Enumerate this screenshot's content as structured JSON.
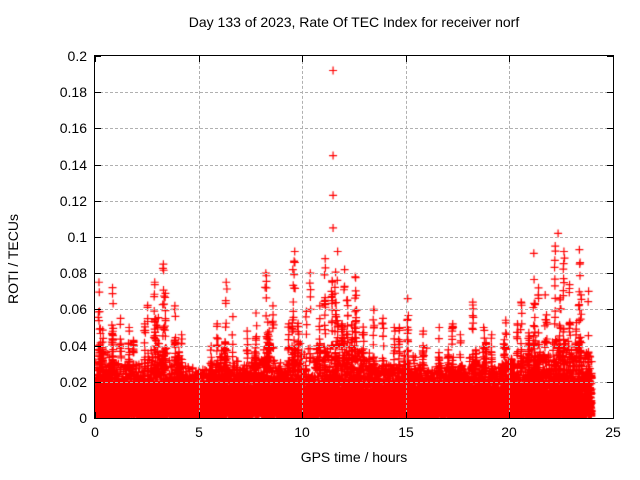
{
  "chart_data": {
    "type": "scatter",
    "title": "Day 133 of 2023, Rate Of TEC Index for receiver norf",
    "xlabel": "GPS time / hours",
    "ylabel": "ROTI / TECUs",
    "xlim": [
      0,
      25
    ],
    "ylim": [
      0,
      0.2
    ],
    "grid": true,
    "legend": "none",
    "marker": "plus",
    "marker_color": "#ff0000",
    "marker_size_px": 8,
    "grid_color": "#b0b0b0",
    "axis_color": "#000000",
    "background_color": "#ffffff",
    "xticks": [
      {
        "v": 0,
        "label": "0"
      },
      {
        "v": 5,
        "label": "5"
      },
      {
        "v": 10,
        "label": "10"
      },
      {
        "v": 15,
        "label": "15"
      },
      {
        "v": 20,
        "label": "20"
      },
      {
        "v": 25,
        "label": "25"
      }
    ],
    "yticks": [
      {
        "v": 0,
        "label": "0"
      },
      {
        "v": 0.02,
        "label": "0.02"
      },
      {
        "v": 0.04,
        "label": "0.04"
      },
      {
        "v": 0.06,
        "label": "0.06"
      },
      {
        "v": 0.08,
        "label": "0.08"
      },
      {
        "v": 0.1,
        "label": "0.1"
      },
      {
        "v": 0.12,
        "label": "0.12"
      },
      {
        "v": 0.14,
        "label": "0.14"
      },
      {
        "v": 0.16,
        "label": "0.16"
      },
      {
        "v": 0.18,
        "label": "0.18"
      },
      {
        "v": 0.2,
        "label": "0.2"
      }
    ],
    "series_model": {
      "note": "Dense red '+' scatter of ~17000 ROTI samples over 0-24 h; solid noise floor below ~0.026 TECU, semi-dense band to ~0.04, and clustered spike columns whose per-half-hour maxima are listed in envelope_max.",
      "x_data_range": [
        0.02,
        23.98
      ],
      "seed": 20231337,
      "n_base_points": 16000,
      "floor_min": 0.001,
      "floor_mean": 0.007,
      "floor_clip": 0.026,
      "mid_fraction": 0.34,
      "mid_base": 0.006,
      "envelope_bin_hours": 0.5,
      "envelope_max": [
        0.075,
        0.072,
        0.055,
        0.05,
        0.052,
        0.075,
        0.085,
        0.062,
        0.046,
        0.044,
        0.044,
        0.052,
        0.075,
        0.056,
        0.048,
        0.058,
        0.08,
        0.062,
        0.052,
        0.092,
        0.08,
        0.062,
        0.088,
        0.092,
        0.082,
        0.078,
        0.06,
        0.055,
        0.05,
        0.05,
        0.066,
        0.048,
        0.044,
        0.05,
        0.052,
        0.046,
        0.064,
        0.05,
        0.046,
        0.054,
        0.052,
        0.064,
        0.091,
        0.068,
        0.095,
        0.092,
        0.093,
        0.07
      ],
      "outliers": [
        [
          11.49,
          0.192
        ],
        [
          11.49,
          0.145
        ],
        [
          11.49,
          0.123
        ],
        [
          11.49,
          0.105
        ],
        [
          22.35,
          0.102
        ]
      ]
    }
  }
}
